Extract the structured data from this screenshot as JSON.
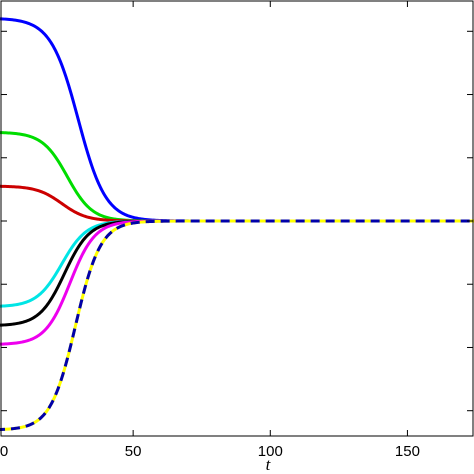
{
  "chart_data": {
    "type": "line",
    "title": "",
    "xlabel": "t",
    "ylabel": "",
    "xlim": [
      0,
      175
    ],
    "ylim": [
      -3.4,
      3.4
    ],
    "x_ticks": [
      0,
      50,
      100,
      150
    ],
    "x_tick_labels": [
      "0",
      "50",
      "100",
      "150"
    ],
    "grid": false,
    "legend": "none",
    "converge_value": 0,
    "series": [
      {
        "color": "#0000ff",
        "dash": false,
        "initial": 3.2,
        "midpoint": 30,
        "width": 11
      },
      {
        "color": "#00dd00",
        "dash": false,
        "initial": 1.4,
        "midpoint": 26,
        "width": 10
      },
      {
        "color": "#cc0000",
        "dash": false,
        "initial": 0.55,
        "midpoint": 24,
        "width": 10
      },
      {
        "color": "#00e5e5",
        "dash": false,
        "initial": -1.35,
        "midpoint": 24,
        "width": 10
      },
      {
        "color": "#000000",
        "dash": false,
        "initial": -1.65,
        "midpoint": 25,
        "width": 10
      },
      {
        "color": "#ee00ee",
        "dash": false,
        "initial": -1.95,
        "midpoint": 27,
        "width": 10
      },
      {
        "color": "#ffff00",
        "dash": false,
        "initial": -3.3,
        "midpoint": 29,
        "width": 10
      },
      {
        "color": "#0000aa",
        "dash": true,
        "initial": -3.3,
        "midpoint": 29,
        "width": 10
      }
    ]
  }
}
